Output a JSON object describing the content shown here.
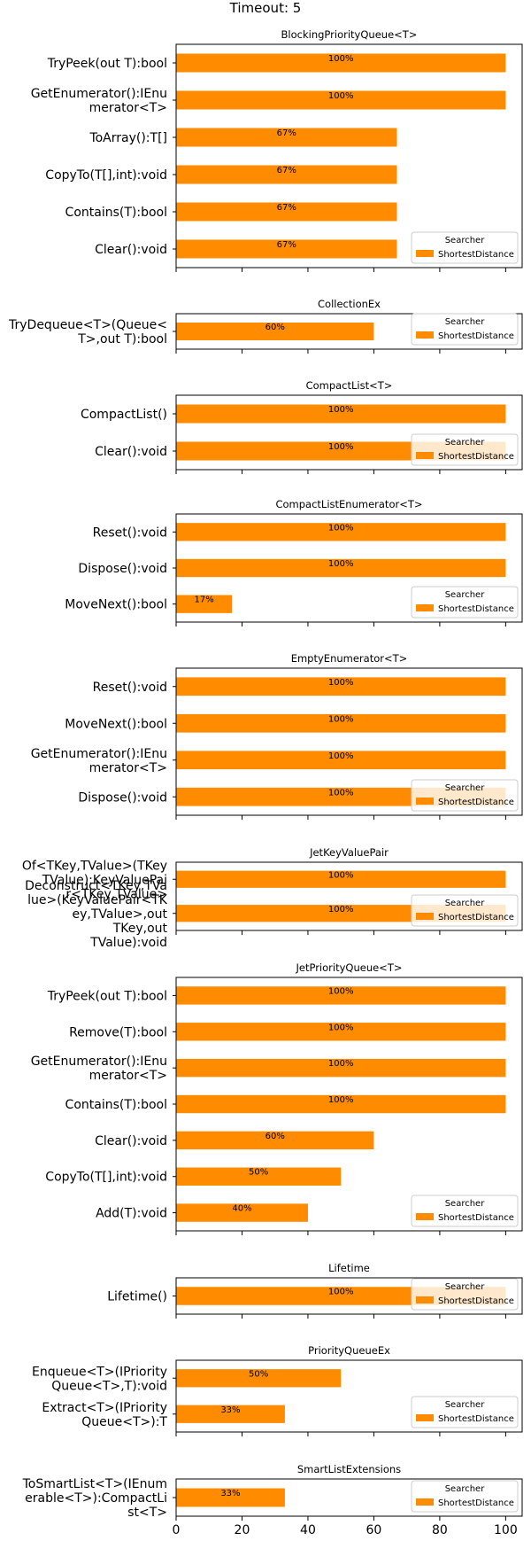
{
  "figure_title": "Timeout: 5",
  "colors": {
    "bar": "#ff8c00",
    "frame": "#000000",
    "text": "#000000"
  },
  "legend": {
    "title": "Searcher",
    "entry": "ShortestDistance",
    "placement": "lower-right"
  },
  "chart_data": [
    {
      "type": "bar",
      "orientation": "horizontal",
      "title": "BlockingPriorityQueue<T>",
      "categories": [
        "TryPeek(out T):bool",
        "GetEnumerator():IEnumerator<T>",
        "ToArray():T[]",
        "CopyTo(T[],int):void",
        "Contains(T):bool",
        "Clear():void"
      ],
      "tick_labels": [
        [
          "TryPeek(out T):bool"
        ],
        [
          "GetEnumerator():IEnu",
          "merator<T>"
        ],
        [
          "ToArray():T[]"
        ],
        [
          "CopyTo(T[],int):void"
        ],
        [
          "Contains(T):bool"
        ],
        [
          "Clear():void"
        ]
      ],
      "series": [
        {
          "name": "ShortestDistance",
          "values": [
            100,
            100,
            67,
            67,
            67,
            67
          ]
        }
      ],
      "data_labels": [
        "100%",
        "100%",
        "67%",
        "67%",
        "67%",
        "67%"
      ],
      "xlim": [
        0,
        105
      ]
    },
    {
      "type": "bar",
      "orientation": "horizontal",
      "title": "CollectionEx",
      "categories": [
        "TryDequeue<T>(Queue<T>,out T):bool"
      ],
      "tick_labels": [
        [
          "TryDequeue<T>(Queue<",
          "T>,out T):bool"
        ]
      ],
      "series": [
        {
          "name": "ShortestDistance",
          "values": [
            60
          ]
        }
      ],
      "data_labels": [
        "60%"
      ],
      "xlim": [
        0,
        105
      ]
    },
    {
      "type": "bar",
      "orientation": "horizontal",
      "title": "CompactList<T>",
      "categories": [
        "CompactList()",
        "Clear():void"
      ],
      "tick_labels": [
        [
          "CompactList()"
        ],
        [
          "Clear():void"
        ]
      ],
      "series": [
        {
          "name": "ShortestDistance",
          "values": [
            100,
            100
          ]
        }
      ],
      "data_labels": [
        "100%",
        "100%"
      ],
      "xlim": [
        0,
        105
      ]
    },
    {
      "type": "bar",
      "orientation": "horizontal",
      "title": "CompactListEnumerator<T>",
      "categories": [
        "Reset():void",
        "Dispose():void",
        "MoveNext():bool"
      ],
      "tick_labels": [
        [
          "Reset():void"
        ],
        [
          "Dispose():void"
        ],
        [
          "MoveNext():bool"
        ]
      ],
      "series": [
        {
          "name": "ShortestDistance",
          "values": [
            100,
            100,
            17
          ]
        }
      ],
      "data_labels": [
        "100%",
        "100%",
        "17%"
      ],
      "xlim": [
        0,
        105
      ]
    },
    {
      "type": "bar",
      "orientation": "horizontal",
      "title": "EmptyEnumerator<T>",
      "categories": [
        "Reset():void",
        "MoveNext():bool",
        "GetEnumerator():IEnumerator<T>",
        "Dispose():void"
      ],
      "tick_labels": [
        [
          "Reset():void"
        ],
        [
          "MoveNext():bool"
        ],
        [
          "GetEnumerator():IEnu",
          "merator<T>"
        ],
        [
          "Dispose():void"
        ]
      ],
      "series": [
        {
          "name": "ShortestDistance",
          "values": [
            100,
            100,
            100,
            100
          ]
        }
      ],
      "data_labels": [
        "100%",
        "100%",
        "100%",
        "100%"
      ],
      "xlim": [
        0,
        105
      ]
    },
    {
      "type": "bar",
      "orientation": "horizontal",
      "title": "JetKeyValuePair",
      "categories": [
        "Of<TKey,TValue>(TKey,TValue):KeyValuePair<TKey,TValue>",
        "Deconstruct<TKey,TValue>(KeyValuePair<TKey,TValue>,out TKey,out TValue):void"
      ],
      "tick_labels": [
        [
          "Of<TKey,TValue>(TKey",
          "TValue):KeyValuePai",
          "r<TKey,TValue>"
        ],
        [
          "Deconstruct<TKey,TVa",
          "lue>(KeyValuePair<TK",
          "ey,TValue>,out",
          "TKey,out",
          "TValue):void"
        ]
      ],
      "series": [
        {
          "name": "ShortestDistance",
          "values": [
            100,
            100
          ]
        }
      ],
      "data_labels": [
        "100%",
        "100%"
      ],
      "xlim": [
        0,
        105
      ]
    },
    {
      "type": "bar",
      "orientation": "horizontal",
      "title": "JetPriorityQueue<T>",
      "categories": [
        "TryPeek(out T):bool",
        "Remove(T):bool",
        "GetEnumerator():IEnumerator<T>",
        "Contains(T):bool",
        "Clear():void",
        "CopyTo(T[],int):void",
        "Add(T):void"
      ],
      "tick_labels": [
        [
          "TryPeek(out T):bool"
        ],
        [
          "Remove(T):bool"
        ],
        [
          "GetEnumerator():IEnu",
          "merator<T>"
        ],
        [
          "Contains(T):bool"
        ],
        [
          "Clear():void"
        ],
        [
          "CopyTo(T[],int):void"
        ],
        [
          "Add(T):void"
        ]
      ],
      "series": [
        {
          "name": "ShortestDistance",
          "values": [
            100,
            100,
            100,
            100,
            60,
            50,
            40
          ]
        }
      ],
      "data_labels": [
        "100%",
        "100%",
        "100%",
        "100%",
        "60%",
        "50%",
        "40%"
      ],
      "xlim": [
        0,
        105
      ]
    },
    {
      "type": "bar",
      "orientation": "horizontal",
      "title": "Lifetime",
      "categories": [
        "Lifetime()"
      ],
      "tick_labels": [
        [
          "Lifetime()"
        ]
      ],
      "series": [
        {
          "name": "ShortestDistance",
          "values": [
            100
          ]
        }
      ],
      "data_labels": [
        "100%"
      ],
      "xlim": [
        0,
        105
      ]
    },
    {
      "type": "bar",
      "orientation": "horizontal",
      "title": "PriorityQueueEx",
      "categories": [
        "Enqueue<T>(IPriorityQueue<T>,T):void",
        "Extract<T>(IPriorityQueue<T>):T"
      ],
      "tick_labels": [
        [
          "Enqueue<T>(IPriority",
          "Queue<T>,T):void"
        ],
        [
          "Extract<T>(IPriority",
          "Queue<T>):T"
        ]
      ],
      "series": [
        {
          "name": "ShortestDistance",
          "values": [
            50,
            33
          ]
        }
      ],
      "data_labels": [
        "50%",
        "33%"
      ],
      "xlim": [
        0,
        105
      ]
    },
    {
      "type": "bar",
      "orientation": "horizontal",
      "title": "SmartListExtensions",
      "categories": [
        "ToSmartList<T>(IEnumerable<T>):CompactList<T>"
      ],
      "tick_labels": [
        [
          "ToSmartList<T>(IEnum",
          "erable<T>):CompactLi",
          "st<T>"
        ]
      ],
      "series": [
        {
          "name": "ShortestDistance",
          "values": [
            33
          ]
        }
      ],
      "data_labels": [
        "33%"
      ],
      "xlim": [
        0,
        105
      ],
      "xticks": [
        "0",
        "20",
        "40",
        "60",
        "80",
        "100"
      ]
    }
  ]
}
